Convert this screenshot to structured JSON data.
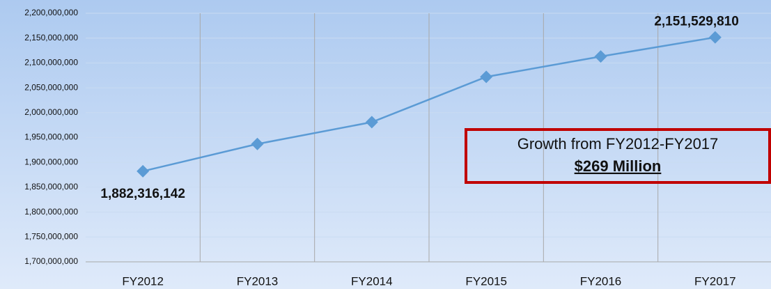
{
  "chart_data": {
    "type": "line",
    "categories": [
      "FY2012",
      "FY2013",
      "FY2014",
      "FY2015",
      "FY2016",
      "FY2017"
    ],
    "series": [
      {
        "color": "#5b9bd5",
        "values": [
          1882316142,
          1937000000,
          1981000000,
          2072000000,
          2113000000,
          2151529810
        ],
        "value_labels": [
          "1,882,316,142",
          null,
          null,
          null,
          null,
          "2,151,529,810"
        ]
      }
    ],
    "ylim": [
      1700000000,
      2200000000
    ],
    "yticks": [
      {
        "value": 1700000000,
        "label": "1,700,000,000"
      },
      {
        "value": 1750000000,
        "label": "1,750,000,000"
      },
      {
        "value": 1800000000,
        "label": "1,800,000,000"
      },
      {
        "value": 1850000000,
        "label": "1,850,000,000"
      },
      {
        "value": 1900000000,
        "label": "1,900,000,000"
      },
      {
        "value": 1950000000,
        "label": "1,950,000,000"
      },
      {
        "value": 2000000000,
        "label": "2,000,000,000"
      },
      {
        "value": 2050000000,
        "label": "2,050,000,000"
      },
      {
        "value": 2100000000,
        "label": "2,100,000,000"
      },
      {
        "value": 2150000000,
        "label": "2,150,000,000"
      },
      {
        "value": 2200000000,
        "label": "2,200,000,000"
      }
    ],
    "grid": true,
    "annotation": {
      "text": "Growth from FY2012-FY2017",
      "highlight": "$269 Million"
    }
  }
}
